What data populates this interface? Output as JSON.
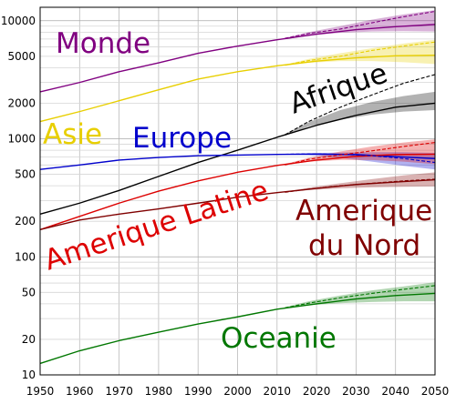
{
  "chart_data": {
    "type": "line",
    "title": "",
    "xlabel": "",
    "ylabel": "",
    "xlim": [
      1950,
      2050
    ],
    "ylim": [
      10,
      13000
    ],
    "y_scale": "log",
    "grid": true,
    "legend": "none",
    "x_ticks": [
      "1950",
      "1960",
      "1970",
      "1980",
      "1990",
      "2000",
      "2010",
      "2020",
      "2030",
      "2040",
      "2050"
    ],
    "y_ticks": [
      "10",
      "20",
      "50",
      "100",
      "200",
      "500",
      "1000",
      "2000",
      "5000",
      "10000"
    ],
    "y_tick_values": [
      10,
      20,
      50,
      100,
      200,
      500,
      1000,
      2000,
      5000,
      10000
    ],
    "series": [
      {
        "name": "Monde",
        "color": "#800080",
        "label_angle": 0,
        "x": [
          1950,
          1960,
          1970,
          1980,
          1990,
          2000,
          2010,
          2020,
          2030,
          2040,
          2050
        ],
        "values": [
          2500,
          3000,
          3700,
          4400,
          5300,
          6100,
          6900,
          7700,
          8400,
          8900,
          9300
        ],
        "projection_start": 2012,
        "projection_dashed": [
          7100,
          7800,
          8500,
          9600,
          10800,
          12000
        ],
        "band_low": [
          6950,
          7500,
          7900,
          8100,
          8150,
          8100
        ],
        "band_high": [
          7150,
          8000,
          9000,
          10200,
          11300,
          12300
        ]
      },
      {
        "name": "Asie",
        "color": "#e8cf00",
        "label_angle": 0,
        "x": [
          1950,
          1960,
          1970,
          1980,
          1990,
          2000,
          2010,
          2020,
          2030,
          2040,
          2050
        ],
        "values": [
          1400,
          1700,
          2100,
          2600,
          3200,
          3700,
          4150,
          4550,
          4850,
          5050,
          5100
        ],
        "projection_start": 2012,
        "projection_dashed": [
          4200,
          4600,
          5000,
          5600,
          6100,
          6600
        ],
        "band_low": [
          4150,
          4400,
          4550,
          4550,
          4450,
          4300
        ],
        "band_high": [
          4250,
          4750,
          5300,
          5850,
          6400,
          6900
        ]
      },
      {
        "name": "Afrique",
        "color": "#000000",
        "label_angle": -19,
        "x": [
          1950,
          1960,
          1970,
          1980,
          1990,
          2000,
          2010,
          2020,
          2030,
          2040,
          2050
        ],
        "values": [
          230,
          285,
          365,
          480,
          630,
          800,
          1030,
          1300,
          1580,
          1850,
          2000
        ],
        "projection_start": 2012,
        "projection_dashed": [
          1080,
          1400,
          1850,
          2350,
          2950,
          3500
        ],
        "band_low": [
          1060,
          1270,
          1450,
          1600,
          1700,
          1750
        ],
        "band_high": [
          1100,
          1380,
          1750,
          2050,
          2300,
          2500
        ]
      },
      {
        "name": "Europe",
        "color": "#0000cc",
        "label_angle": 0,
        "x": [
          1950,
          1960,
          1970,
          1980,
          1990,
          2000,
          2010,
          2020,
          2030,
          2040,
          2050
        ],
        "values": [
          550,
          600,
          660,
          695,
          720,
          728,
          738,
          742,
          735,
          705,
          680
        ],
        "projection_start": 2012,
        "projection_dashed": [
          740,
          745,
          738,
          720,
          680,
          630
        ],
        "band_low": [
          735,
          725,
          690,
          640,
          590,
          550
        ],
        "band_high": [
          742,
          755,
          765,
          770,
          770,
          760
        ]
      },
      {
        "name": "Amerique Latine",
        "color": "#dd0000",
        "label_angle": -18,
        "x": [
          1950,
          1960,
          1970,
          1980,
          1990,
          2000,
          2010,
          2020,
          2030,
          2040,
          2050
        ],
        "values": [
          170,
          220,
          285,
          360,
          440,
          520,
          595,
          660,
          710,
          735,
          740
        ],
        "projection_start": 2012,
        "projection_dashed": [
          600,
          670,
          730,
          790,
          860,
          930
        ],
        "band_low": [
          595,
          640,
          660,
          660,
          640,
          610
        ],
        "band_high": [
          610,
          690,
          780,
          860,
          930,
          990
        ]
      },
      {
        "name": "Amerique du Nord",
        "color": "#800000",
        "label_angle": 0,
        "x": [
          1950,
          1960,
          1970,
          1980,
          1990,
          2000,
          2010,
          2020,
          2030,
          2040,
          2050
        ],
        "values": [
          170,
          205,
          230,
          255,
          285,
          320,
          350,
          380,
          410,
          430,
          450
        ],
        "projection_start": 2012,
        "projection_dashed": [
          352,
          375,
          400,
          420,
          440,
          455
        ],
        "band_low": [
          350,
          368,
          380,
          388,
          392,
          395
        ],
        "band_high": [
          356,
          385,
          420,
          455,
          490,
          520
        ]
      },
      {
        "name": "Oceanie",
        "color": "#007700",
        "label_angle": 0,
        "x": [
          1950,
          1960,
          1970,
          1980,
          1990,
          2000,
          2010,
          2020,
          2030,
          2040,
          2050
        ],
        "values": [
          12.5,
          16,
          19.5,
          23,
          27,
          31,
          36,
          40,
          44,
          47,
          49
        ],
        "projection_start": 2012,
        "projection_dashed": [
          37,
          40.5,
          45,
          49,
          53,
          57
        ],
        "band_low": [
          36.5,
          39,
          40.5,
          41.5,
          42,
          42
        ],
        "band_high": [
          37.5,
          42,
          47,
          52,
          56,
          61
        ]
      }
    ]
  }
}
